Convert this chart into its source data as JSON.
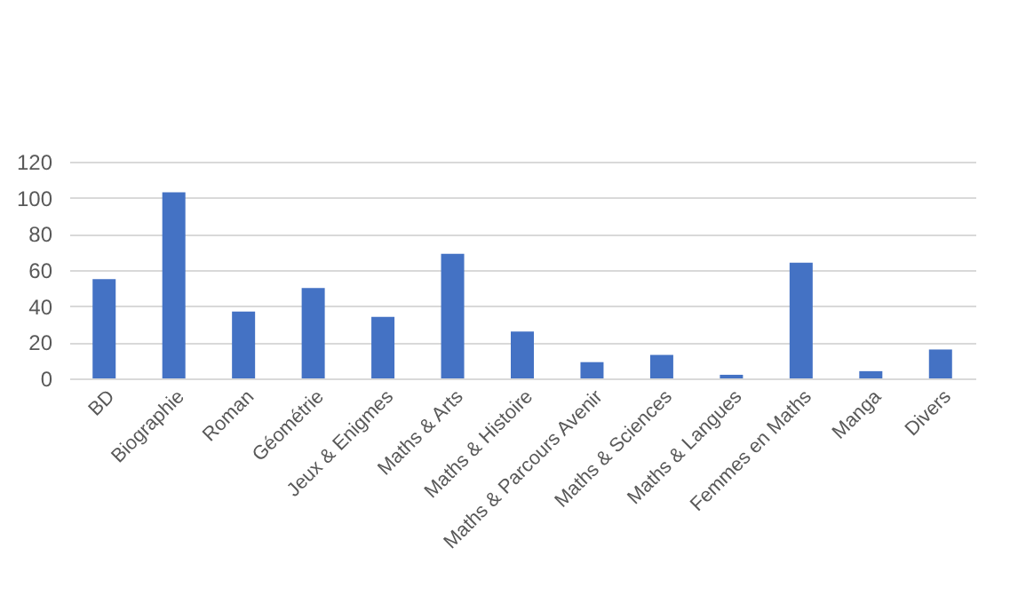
{
  "chart_data": {
    "type": "bar",
    "categories": [
      "BD",
      "Biographie",
      "Roman",
      "Géométrie",
      "Jeux & Enigmes",
      "Maths & Arts",
      "Maths & Histoire",
      "Maths & Parcours Avenir",
      "Maths & Sciences",
      "Maths & Langues",
      "Femmes en Maths",
      "Manga",
      "Divers"
    ],
    "values": [
      55,
      103,
      37,
      50,
      34,
      69,
      26,
      9,
      13,
      2,
      64,
      4,
      16
    ],
    "color": "#4472c4",
    "ylim": [
      0,
      120
    ],
    "yticks": [
      0,
      20,
      40,
      60,
      80,
      100,
      120
    ],
    "grid": "y"
  }
}
